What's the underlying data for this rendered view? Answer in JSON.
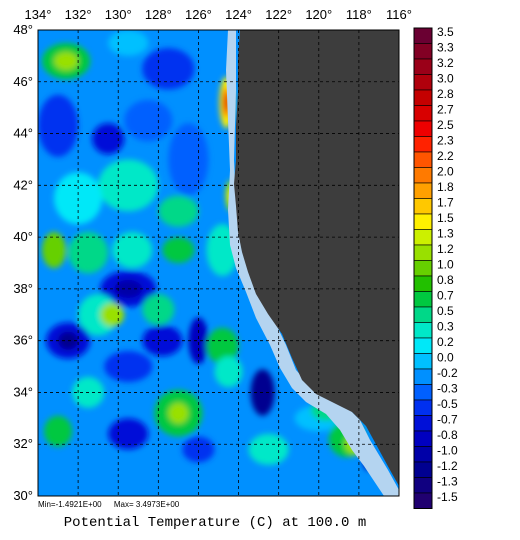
{
  "map": {
    "lon_labels": [
      "134°",
      "132°",
      "130°",
      "128°",
      "126°",
      "124°",
      "122°",
      "120°",
      "118°",
      "116°"
    ],
    "lat_labels": [
      "48°",
      "46°",
      "44°",
      "42°",
      "40°",
      "38°",
      "36°",
      "34°",
      "32°",
      "30°"
    ],
    "lon_range": [
      -134,
      -116
    ],
    "lat_range": [
      30,
      48
    ],
    "grid": true,
    "land_color": "#3d3d3d",
    "shelf_color": "#b4d4f0"
  },
  "stats": {
    "min": "Min=-1.4921E+00",
    "max": "Max= 3.4973E+00"
  },
  "title": "Potential Temperature (C) at 100.0 m",
  "colorbar": {
    "labels": [
      "3.5",
      "3.3",
      "3.2",
      "3.0",
      "2.8",
      "2.7",
      "2.5",
      "2.3",
      "2.2",
      "2.0",
      "1.8",
      "1.7",
      "1.5",
      "1.3",
      "1.2",
      "1.0",
      "0.8",
      "0.7",
      "0.5",
      "0.3",
      "0.2",
      "0.0",
      "-0.2",
      "-0.3",
      "-0.5",
      "-0.7",
      "-0.8",
      "-1.0",
      "-1.2",
      "-1.3",
      "-1.5"
    ],
    "colors": [
      "#6a0032",
      "#820024",
      "#9a0018",
      "#b0000c",
      "#c40000",
      "#d80000",
      "#ee0000",
      "#ff2200",
      "#ff5500",
      "#ff7a00",
      "#ffa000",
      "#ffc800",
      "#fff000",
      "#ccf000",
      "#99e000",
      "#66d000",
      "#22c000",
      "#00c840",
      "#00d888",
      "#00e8c8",
      "#00e8f8",
      "#00c0ff",
      "#0090ff",
      "#0060ff",
      "#0030f0",
      "#0010d8",
      "#0000c0",
      "#0000a8",
      "#000090",
      "#100080",
      "#200070"
    ]
  },
  "blobs": [
    {
      "lon": -132.6,
      "lat": 46.8,
      "rx": 1.2,
      "ry": 0.7,
      "color": "#00c840"
    },
    {
      "lon": -132.6,
      "lat": 46.8,
      "rx": 0.6,
      "ry": 0.35,
      "color": "#99e000"
    },
    {
      "lon": -129.5,
      "lat": 47.5,
      "rx": 1.0,
      "ry": 0.5,
      "color": "#00c0ff"
    },
    {
      "lon": -127.5,
      "lat": 46.5,
      "rx": 1.3,
      "ry": 0.8,
      "color": "#0030f0"
    },
    {
      "lon": -133.0,
      "lat": 44.3,
      "rx": 1.0,
      "ry": 1.2,
      "color": "#0030f0"
    },
    {
      "lon": -130.5,
      "lat": 43.8,
      "rx": 0.8,
      "ry": 0.6,
      "color": "#0010d8"
    },
    {
      "lon": -128.5,
      "lat": 44.5,
      "rx": 1.2,
      "ry": 0.8,
      "color": "#0060ff"
    },
    {
      "lon": -126.5,
      "lat": 43.0,
      "rx": 1.0,
      "ry": 1.4,
      "color": "#0060ff"
    },
    {
      "lon": -129.5,
      "lat": 42.0,
      "rx": 1.5,
      "ry": 1.0,
      "color": "#00e8c8"
    },
    {
      "lon": -132.0,
      "lat": 41.5,
      "rx": 1.2,
      "ry": 1.0,
      "color": "#00e8f8"
    },
    {
      "lon": -127.0,
      "lat": 41.0,
      "rx": 1.0,
      "ry": 0.6,
      "color": "#00d888"
    },
    {
      "lon": -131.5,
      "lat": 39.4,
      "rx": 1.0,
      "ry": 0.8,
      "color": "#00d888"
    },
    {
      "lon": -133.2,
      "lat": 39.5,
      "rx": 0.6,
      "ry": 0.7,
      "color": "#66d000"
    },
    {
      "lon": -129.3,
      "lat": 39.5,
      "rx": 1.0,
      "ry": 0.7,
      "color": "#00e8c8"
    },
    {
      "lon": -127.0,
      "lat": 39.5,
      "rx": 0.8,
      "ry": 0.5,
      "color": "#00c840"
    },
    {
      "lon": -124.8,
      "lat": 39.5,
      "rx": 0.8,
      "ry": 1.0,
      "color": "#00e8c8"
    },
    {
      "lon": -129.5,
      "lat": 38.0,
      "rx": 1.4,
      "ry": 0.7,
      "color": "#0010d8"
    },
    {
      "lon": -129.5,
      "lat": 38.0,
      "rx": 0.7,
      "ry": 0.35,
      "color": "#0000a8"
    },
    {
      "lon": -131.0,
      "lat": 37.0,
      "rx": 1.0,
      "ry": 0.8,
      "color": "#00e8c8"
    },
    {
      "lon": -130.3,
      "lat": 37.0,
      "rx": 0.6,
      "ry": 0.45,
      "color": "#99e000"
    },
    {
      "lon": -128.0,
      "lat": 37.2,
      "rx": 0.8,
      "ry": 0.6,
      "color": "#00d888"
    },
    {
      "lon": -127.8,
      "lat": 36.0,
      "rx": 1.0,
      "ry": 0.6,
      "color": "#0010d8"
    },
    {
      "lon": -126.0,
      "lat": 36.0,
      "rx": 0.5,
      "ry": 0.9,
      "color": "#0000c0"
    },
    {
      "lon": -132.5,
      "lat": 36.0,
      "rx": 1.1,
      "ry": 0.7,
      "color": "#0010d8"
    },
    {
      "lon": -132.5,
      "lat": 36.0,
      "rx": 0.5,
      "ry": 0.35,
      "color": "#000090"
    },
    {
      "lon": -129.5,
      "lat": 35.0,
      "rx": 1.2,
      "ry": 0.6,
      "color": "#0030f0"
    },
    {
      "lon": -124.8,
      "lat": 35.8,
      "rx": 0.8,
      "ry": 0.7,
      "color": "#00c840"
    },
    {
      "lon": -124.5,
      "lat": 34.8,
      "rx": 0.7,
      "ry": 0.6,
      "color": "#00e8c8"
    },
    {
      "lon": -131.5,
      "lat": 34.0,
      "rx": 0.8,
      "ry": 0.6,
      "color": "#00e8c8"
    },
    {
      "lon": -127.0,
      "lat": 33.2,
      "rx": 1.2,
      "ry": 0.9,
      "color": "#00c840"
    },
    {
      "lon": -127.0,
      "lat": 33.2,
      "rx": 0.5,
      "ry": 0.4,
      "color": "#99e000"
    },
    {
      "lon": -122.8,
      "lat": 34.0,
      "rx": 0.6,
      "ry": 0.9,
      "color": "#000090"
    },
    {
      "lon": -129.5,
      "lat": 32.4,
      "rx": 1.0,
      "ry": 0.6,
      "color": "#0010d8"
    },
    {
      "lon": -133.0,
      "lat": 32.5,
      "rx": 0.7,
      "ry": 0.6,
      "color": "#00c840"
    },
    {
      "lon": -126.0,
      "lat": 31.8,
      "rx": 0.8,
      "ry": 0.5,
      "color": "#0030f0"
    },
    {
      "lon": -122.5,
      "lat": 31.8,
      "rx": 1.0,
      "ry": 0.6,
      "color": "#00e8c8"
    },
    {
      "lon": -120.0,
      "lat": 33.0,
      "rx": 1.2,
      "ry": 0.5,
      "color": "#00c0ff"
    },
    {
      "lon": -119.6,
      "lat": 33.3,
      "rx": 0.8,
      "ry": 0.4,
      "color": "#00d888"
    },
    {
      "lon": -118.6,
      "lat": 32.2,
      "rx": 0.9,
      "ry": 0.7,
      "color": "#00c840"
    },
    {
      "lon": -118.2,
      "lat": 32.0,
      "rx": 0.5,
      "ry": 0.4,
      "color": "#99e000"
    },
    {
      "lon": -117.5,
      "lat": 31.4,
      "rx": 0.3,
      "ry": 0.4,
      "color": "#0000a8"
    },
    {
      "lon": -124.6,
      "lat": 45.2,
      "rx": 0.35,
      "ry": 1.0,
      "color": "#fff000"
    },
    {
      "lon": -124.6,
      "lat": 45.2,
      "rx": 0.22,
      "ry": 0.6,
      "color": "#ff7a00"
    },
    {
      "lon": -124.6,
      "lat": 45.2,
      "rx": 0.12,
      "ry": 0.35,
      "color": "#d80000"
    },
    {
      "lon": -124.4,
      "lat": 41.6,
      "rx": 0.25,
      "ry": 0.6,
      "color": "#99e000"
    },
    {
      "lon": -124.4,
      "lat": 41.6,
      "rx": 0.12,
      "ry": 0.3,
      "color": "#fff000"
    }
  ]
}
